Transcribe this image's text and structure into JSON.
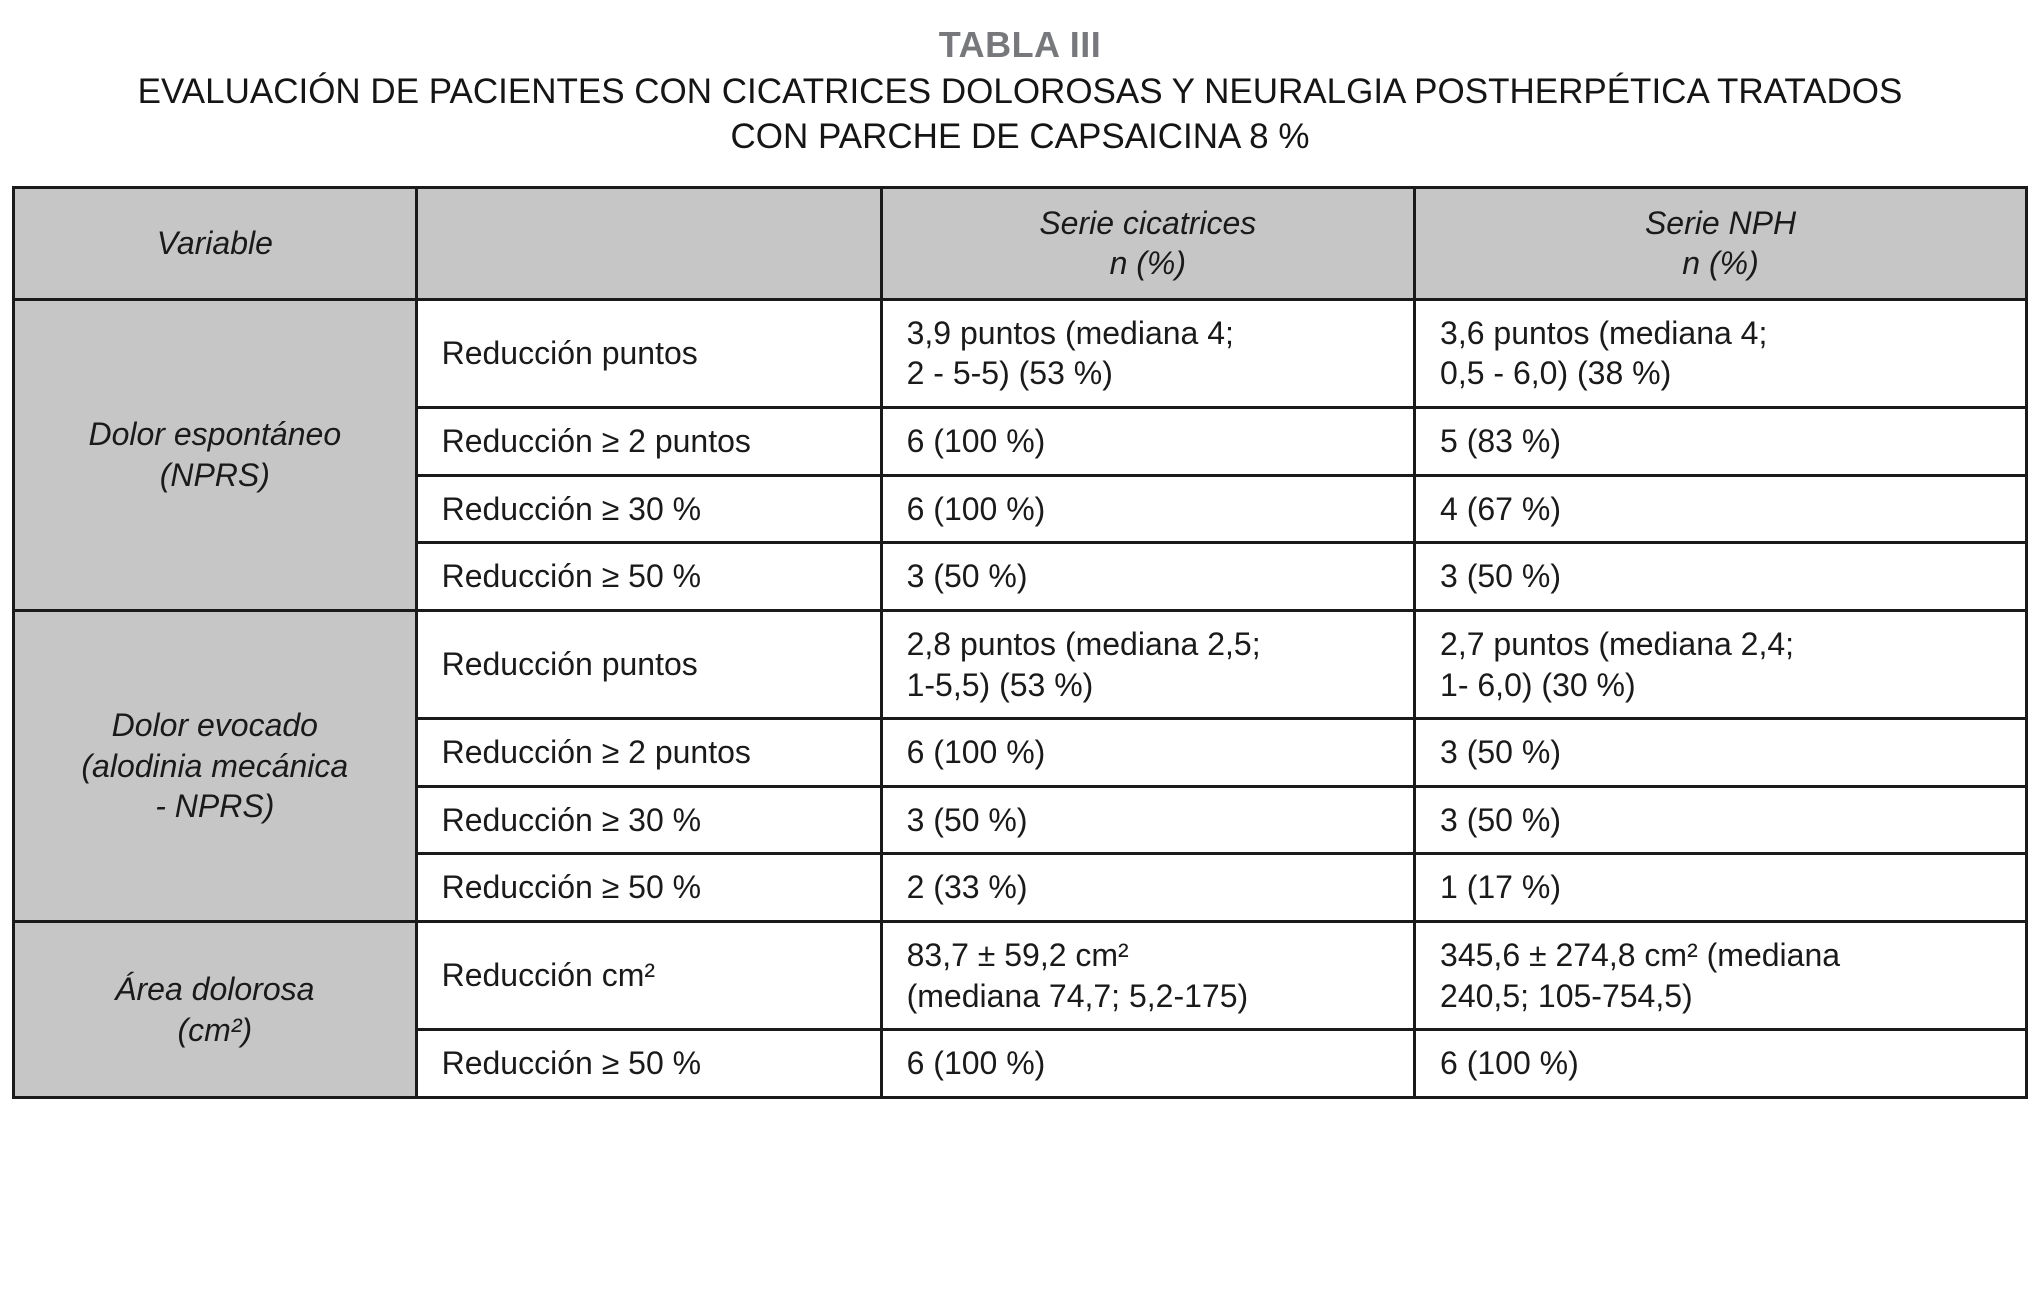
{
  "title": "TABLA III",
  "subtitle_line1": "EVALUACIÓN DE PACIENTES CON CICATRICES DOLOROSAS Y NEURALGIA POSTHERPÉTICA TRATADOS",
  "subtitle_line2": "CON PARCHE DE CAPSAICINA 8 %",
  "colors": {
    "header_bg": "#c6c6c6",
    "border": "#1a1a1a",
    "title_gray": "#77787b"
  },
  "table": {
    "headers": {
      "variable": "Variable",
      "empty": "",
      "serie_cicatrices": "Serie cicatrices\nn (%)",
      "serie_nph": "Serie NPH\nn (%)"
    },
    "groups": [
      {
        "variable": "Dolor espontáneo\n(NPRS)",
        "rows": [
          {
            "label": "Reducción puntos",
            "cicatrices": "3,9 puntos (mediana 4;\n2 - 5-5) (53 %)",
            "nph": "3,6 puntos (mediana 4;\n0,5 - 6,0) (38 %)"
          },
          {
            "label": "Reducción ≥ 2 puntos",
            "cicatrices": "6 (100 %)",
            "nph": "5 (83 %)"
          },
          {
            "label": "Reducción ≥ 30 %",
            "cicatrices": "6 (100 %)",
            "nph": "4 (67 %)"
          },
          {
            "label": "Reducción ≥ 50 %",
            "cicatrices": "3 (50 %)",
            "nph": "3 (50 %)"
          }
        ]
      },
      {
        "variable": "Dolor evocado\n(alodinia mecánica\n- NPRS)",
        "rows": [
          {
            "label": "Reducción puntos",
            "cicatrices": "2,8 puntos (mediana 2,5;\n1-5,5) (53 %)",
            "nph": "2,7 puntos (mediana 2,4;\n1- 6,0) (30 %)"
          },
          {
            "label": "Reducción ≥ 2 puntos",
            "cicatrices": "6 (100 %)",
            "nph": "3 (50 %)"
          },
          {
            "label": "Reducción ≥ 30 %",
            "cicatrices": "3 (50 %)",
            "nph": "3 (50 %)"
          },
          {
            "label": "Reducción ≥ 50 %",
            "cicatrices": "2 (33 %)",
            "nph": "1 (17 %)"
          }
        ]
      },
      {
        "variable": "Área dolorosa\n(cm²)",
        "rows": [
          {
            "label": "Reducción cm²",
            "cicatrices": "83,7 ± 59,2 cm²\n(mediana 74,7; 5,2-175)",
            "nph": "345,6 ± 274,8 cm² (mediana\n240,5; 105-754,5)"
          },
          {
            "label": "Reducción ≥ 50 %",
            "cicatrices": "6 (100 %)",
            "nph": "6 (100 %)"
          }
        ]
      }
    ]
  }
}
